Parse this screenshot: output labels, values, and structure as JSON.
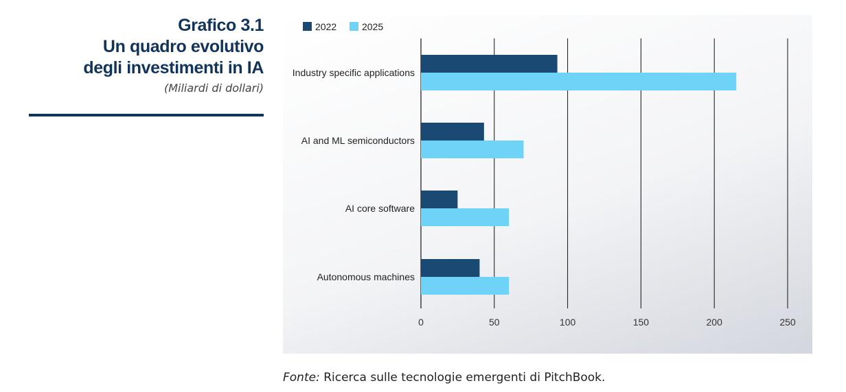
{
  "header": {
    "title_lines": [
      "Grafico 3.1",
      "Un quadro evolutivo",
      "degli investimenti in IA"
    ],
    "subtitle": "(Miliardi di dollari)"
  },
  "source": {
    "label": "Fonte:",
    "text": " Ricerca sulle tecnologie emergenti di PitchBook."
  },
  "colors": {
    "series_2022": "#1a4a73",
    "series_2025": "#6ed3f7",
    "title": "#12345a"
  },
  "chart_data": {
    "type": "bar",
    "orientation": "horizontal",
    "categories": [
      "Industry specific applications",
      "AI and ML semiconductors",
      "AI core software",
      "Autonomous machines"
    ],
    "series": [
      {
        "name": "2022",
        "values": [
          93,
          43,
          25,
          40
        ]
      },
      {
        "name": "2025",
        "values": [
          215,
          70,
          60,
          60
        ]
      }
    ],
    "xlim": [
      0,
      250
    ],
    "xticks": [
      0,
      50,
      100,
      150,
      200,
      250
    ],
    "grid": true,
    "legend": "top-left"
  }
}
